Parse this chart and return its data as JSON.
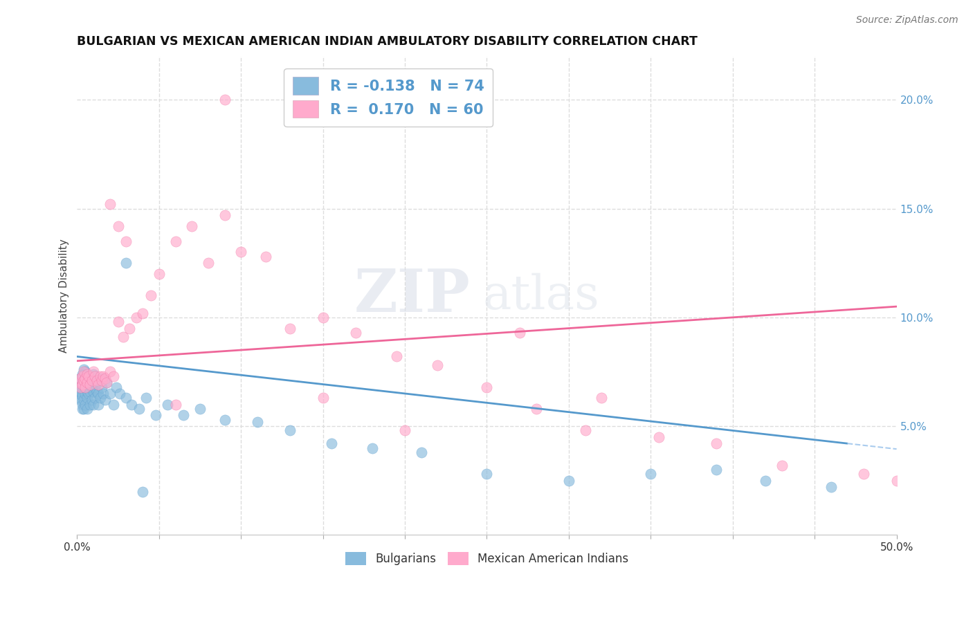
{
  "title": "BULGARIAN VS MEXICAN AMERICAN INDIAN AMBULATORY DISABILITY CORRELATION CHART",
  "source": "Source: ZipAtlas.com",
  "ylabel": "Ambulatory Disability",
  "bg_color": "#ffffff",
  "grid_color": "#dddddd",
  "watermark_zip": "ZIP",
  "watermark_atlas": "atlas",
  "blue_color": "#88bbdd",
  "pink_color": "#ffaacc",
  "blue_line_color": "#5599cc",
  "pink_line_color": "#ee6699",
  "blue_dash_color": "#aaccee",
  "text_color": "#5599cc",
  "legend_R_blue": "-0.138",
  "legend_N_blue": "74",
  "legend_R_pink": "0.170",
  "legend_N_pink": "60",
  "xlim": [
    0.0,
    0.5
  ],
  "ylim": [
    0.0,
    0.22
  ],
  "x_ticks": [
    0.0,
    0.05,
    0.1,
    0.15,
    0.2,
    0.25,
    0.3,
    0.35,
    0.4,
    0.45,
    0.5
  ],
  "y_ticks": [
    0.05,
    0.1,
    0.15,
    0.2
  ],
  "blue_x": [
    0.001,
    0.001,
    0.001,
    0.002,
    0.002,
    0.002,
    0.002,
    0.003,
    0.003,
    0.003,
    0.003,
    0.003,
    0.004,
    0.004,
    0.004,
    0.004,
    0.005,
    0.005,
    0.005,
    0.005,
    0.005,
    0.006,
    0.006,
    0.006,
    0.006,
    0.007,
    0.007,
    0.007,
    0.008,
    0.008,
    0.008,
    0.009,
    0.009,
    0.01,
    0.01,
    0.01,
    0.011,
    0.011,
    0.012,
    0.012,
    0.013,
    0.013,
    0.014,
    0.015,
    0.015,
    0.016,
    0.017,
    0.018,
    0.02,
    0.022,
    0.024,
    0.026,
    0.03,
    0.033,
    0.038,
    0.042,
    0.048,
    0.055,
    0.065,
    0.075,
    0.09,
    0.11,
    0.13,
    0.155,
    0.18,
    0.21,
    0.25,
    0.3,
    0.35,
    0.39,
    0.42,
    0.46,
    0.03,
    0.04
  ],
  "blue_y": [
    0.065,
    0.063,
    0.068,
    0.062,
    0.07,
    0.066,
    0.072,
    0.06,
    0.068,
    0.074,
    0.058,
    0.064,
    0.07,
    0.062,
    0.076,
    0.058,
    0.072,
    0.065,
    0.068,
    0.06,
    0.075,
    0.063,
    0.07,
    0.058,
    0.066,
    0.065,
    0.068,
    0.072,
    0.06,
    0.066,
    0.07,
    0.062,
    0.068,
    0.074,
    0.06,
    0.066,
    0.068,
    0.063,
    0.07,
    0.066,
    0.065,
    0.06,
    0.063,
    0.068,
    0.072,
    0.065,
    0.062,
    0.07,
    0.065,
    0.06,
    0.068,
    0.065,
    0.063,
    0.06,
    0.058,
    0.063,
    0.055,
    0.06,
    0.055,
    0.058,
    0.053,
    0.052,
    0.048,
    0.042,
    0.04,
    0.038,
    0.028,
    0.025,
    0.028,
    0.03,
    0.025,
    0.022,
    0.125,
    0.02
  ],
  "pink_x": [
    0.001,
    0.002,
    0.002,
    0.003,
    0.003,
    0.004,
    0.004,
    0.005,
    0.005,
    0.006,
    0.006,
    0.007,
    0.008,
    0.009,
    0.01,
    0.011,
    0.012,
    0.013,
    0.014,
    0.015,
    0.016,
    0.017,
    0.018,
    0.02,
    0.022,
    0.025,
    0.028,
    0.032,
    0.036,
    0.04,
    0.045,
    0.05,
    0.06,
    0.07,
    0.08,
    0.09,
    0.1,
    0.115,
    0.13,
    0.15,
    0.17,
    0.195,
    0.22,
    0.25,
    0.28,
    0.31,
    0.32,
    0.355,
    0.39,
    0.43,
    0.48,
    0.5,
    0.025,
    0.03,
    0.02,
    0.15,
    0.2,
    0.06,
    0.09,
    0.27
  ],
  "pink_y": [
    0.07,
    0.072,
    0.068,
    0.073,
    0.069,
    0.071,
    0.075,
    0.072,
    0.068,
    0.074,
    0.07,
    0.073,
    0.069,
    0.071,
    0.075,
    0.073,
    0.071,
    0.069,
    0.073,
    0.071,
    0.073,
    0.072,
    0.07,
    0.075,
    0.073,
    0.098,
    0.091,
    0.095,
    0.1,
    0.102,
    0.11,
    0.12,
    0.135,
    0.142,
    0.125,
    0.147,
    0.13,
    0.128,
    0.095,
    0.1,
    0.093,
    0.082,
    0.078,
    0.068,
    0.058,
    0.048,
    0.063,
    0.045,
    0.042,
    0.032,
    0.028,
    0.025,
    0.142,
    0.135,
    0.152,
    0.063,
    0.048,
    0.06,
    0.2,
    0.093
  ]
}
